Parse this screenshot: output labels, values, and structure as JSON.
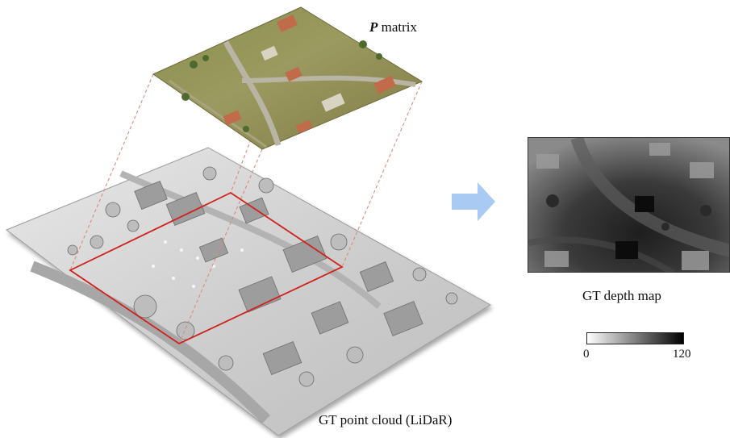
{
  "figure": {
    "projection_title_symbol": "P",
    "projection_title_text": " matrix",
    "point_cloud_label": "GT point cloud (LiDaR)",
    "depth_map_label": "GT depth map",
    "colorbar": {
      "min_label": "0",
      "max_label": "120",
      "min_color": "#ffffff",
      "max_color": "#000000"
    },
    "arrow_color": "#a9cbf3",
    "region_box_color": "#d0221c",
    "projection_line_color": "#d98a86"
  }
}
